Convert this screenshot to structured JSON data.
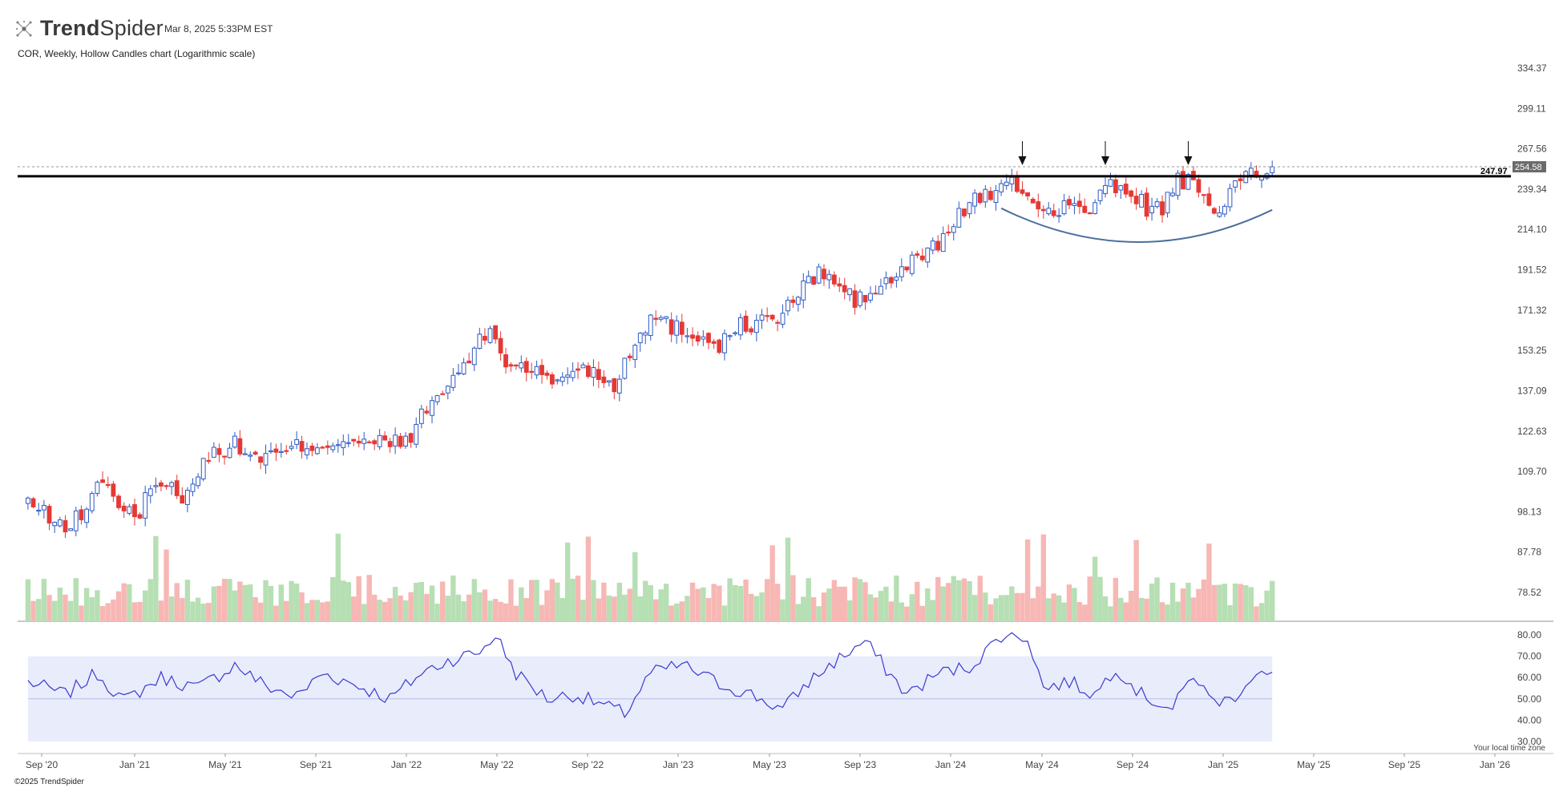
{
  "header": {
    "brand_bold": "Trend",
    "brand_light": "Spider",
    "timestamp": "Mar 8, 2025 5:33PM EST",
    "chart_description": "COR, Weekly, Hollow Candles chart (Logarithmic scale)"
  },
  "footer": {
    "copyright": "©2025 TrendSpider"
  },
  "timezone_note": "Your local time zone",
  "colors": {
    "up": "#2d59c4",
    "down": "#e53935",
    "vol_up": "#b6dfb4",
    "vol_down": "#f7b7b4",
    "rsi_line": "#3a3ad0",
    "rsi_band": "#e9ecfb",
    "cup_arc": "#4a6f9e",
    "resistance": "#000000"
  },
  "icons": {
    "brand": "spider-logo-icon",
    "markers": "down-arrow-icon"
  },
  "chart_data": {
    "type": "candlestick",
    "symbol": "COR",
    "timeframe": "Weekly",
    "style": "Hollow Candles",
    "scale": "log",
    "price_ticks": [
      "334.37",
      "299.11",
      "267.56",
      "239.34",
      "214.10",
      "191.52",
      "171.32",
      "153.25",
      "137.09",
      "122.63",
      "109.70",
      "98.13",
      "87.78",
      "78.52"
    ],
    "time_ticks": [
      "Sep '20",
      "Jan '21",
      "May '21",
      "Sep '21",
      "Jan '22",
      "May '22",
      "Sep '22",
      "Jan '23",
      "May '23",
      "Sep '23",
      "Jan '24",
      "May '24",
      "Sep '24",
      "Jan '25",
      "May '25",
      "Sep '25",
      "Jan '26"
    ],
    "rsi_ticks": [
      "80.00",
      "70.00",
      "60.00",
      "50.00",
      "40.00",
      "30.00"
    ],
    "resistance_level": 247.97,
    "last_price": 254.58,
    "resistance_label": "247.97",
    "last_price_label": "254.58",
    "close_anchors": [
      [
        "2020-08-14",
        101
      ],
      [
        "2020-09-25",
        94
      ],
      [
        "2020-10-23",
        97
      ],
      [
        "2020-11-20",
        108
      ],
      [
        "2020-12-18",
        98
      ],
      [
        "2021-01-08",
        96
      ],
      [
        "2021-01-22",
        107
      ],
      [
        "2021-03-05",
        103
      ],
      [
        "2021-04-16",
        116
      ],
      [
        "2021-05-14",
        118
      ],
      [
        "2021-06-11",
        114
      ],
      [
        "2021-07-16",
        115
      ],
      [
        "2021-08-13",
        118
      ],
      [
        "2021-09-10",
        118
      ],
      [
        "2021-10-08",
        120
      ],
      [
        "2021-11-05",
        118
      ],
      [
        "2021-12-03",
        119
      ],
      [
        "2021-12-31",
        119
      ],
      [
        "2022-01-28",
        130
      ],
      [
        "2022-02-25",
        139
      ],
      [
        "2022-03-25",
        150
      ],
      [
        "2022-04-22",
        163
      ],
      [
        "2022-05-13",
        148
      ],
      [
        "2022-06-10",
        147
      ],
      [
        "2022-07-15",
        140
      ],
      [
        "2022-08-12",
        146
      ],
      [
        "2022-09-09",
        145
      ],
      [
        "2022-10-07",
        139
      ],
      [
        "2022-11-04",
        158
      ],
      [
        "2022-11-25",
        168
      ],
      [
        "2022-12-23",
        164
      ],
      [
        "2023-01-27",
        160
      ],
      [
        "2023-02-24",
        156
      ],
      [
        "2023-03-24",
        164
      ],
      [
        "2023-04-21",
        166
      ],
      [
        "2023-05-19",
        169
      ],
      [
        "2023-06-09",
        180
      ],
      [
        "2023-07-07",
        190
      ],
      [
        "2023-07-28",
        186
      ],
      [
        "2023-08-25",
        175
      ],
      [
        "2023-09-22",
        181
      ],
      [
        "2023-10-20",
        188
      ],
      [
        "2023-11-17",
        198
      ],
      [
        "2023-12-15",
        206
      ],
      [
        "2024-01-12",
        222
      ],
      [
        "2024-02-02",
        236
      ],
      [
        "2024-02-23",
        234
      ],
      [
        "2024-03-15",
        242
      ],
      [
        "2024-04-05",
        240
      ],
      [
        "2024-04-26",
        228
      ],
      [
        "2024-05-10",
        224
      ],
      [
        "2024-05-31",
        230
      ],
      [
        "2024-06-21",
        225
      ],
      [
        "2024-07-12",
        229
      ],
      [
        "2024-07-26",
        240
      ],
      [
        "2024-08-09",
        240
      ],
      [
        "2024-08-30",
        238
      ],
      [
        "2024-09-20",
        227
      ],
      [
        "2024-10-11",
        228
      ],
      [
        "2024-11-01",
        244
      ],
      [
        "2024-11-22",
        243
      ],
      [
        "2024-12-06",
        230
      ],
      [
        "2024-12-27",
        228
      ],
      [
        "2025-01-17",
        239
      ],
      [
        "2025-02-07",
        254
      ],
      [
        "2025-02-21",
        245
      ],
      [
        "2025-03-07",
        254.58
      ]
    ],
    "volume_note": "weekly volume bars, colored by candle direction",
    "rsi_anchors": [
      [
        "2020-08-14",
        58
      ],
      [
        "2020-10-02",
        52
      ],
      [
        "2020-11-13",
        62
      ],
      [
        "2020-12-18",
        49
      ],
      [
        "2021-02-05",
        60
      ],
      [
        "2021-03-26",
        55
      ],
      [
        "2021-05-14",
        66
      ],
      [
        "2021-06-25",
        56
      ],
      [
        "2021-08-06",
        51
      ],
      [
        "2021-09-10",
        62
      ],
      [
        "2021-10-22",
        57
      ],
      [
        "2021-12-10",
        50
      ],
      [
        "2022-01-21",
        62
      ],
      [
        "2022-02-25",
        68
      ],
      [
        "2022-04-08",
        72
      ],
      [
        "2022-04-29",
        80
      ],
      [
        "2022-05-27",
        62
      ],
      [
        "2022-07-08",
        50
      ],
      [
        "2022-08-12",
        52
      ],
      [
        "2022-09-16",
        48
      ],
      [
        "2022-10-21",
        43
      ],
      [
        "2022-11-25",
        62
      ],
      [
        "2023-01-06",
        66
      ],
      [
        "2023-02-24",
        57
      ],
      [
        "2023-04-07",
        52
      ],
      [
        "2023-05-19",
        45
      ],
      [
        "2023-06-23",
        58
      ],
      [
        "2023-08-04",
        69
      ],
      [
        "2023-09-08",
        77
      ],
      [
        "2023-10-06",
        64
      ],
      [
        "2023-11-03",
        52
      ],
      [
        "2023-12-15",
        62
      ],
      [
        "2024-01-26",
        65
      ],
      [
        "2024-02-16",
        72
      ],
      [
        "2024-03-08",
        80
      ],
      [
        "2024-04-12",
        79
      ],
      [
        "2024-05-03",
        55
      ],
      [
        "2024-06-07",
        58
      ],
      [
        "2024-07-12",
        52
      ],
      [
        "2024-08-09",
        65
      ],
      [
        "2024-09-13",
        52
      ],
      [
        "2024-10-25",
        45
      ],
      [
        "2024-11-22",
        62
      ],
      [
        "2024-12-13",
        50
      ],
      [
        "2025-01-10",
        49
      ],
      [
        "2025-02-14",
        63
      ],
      [
        "2025-03-07",
        60
      ]
    ]
  }
}
